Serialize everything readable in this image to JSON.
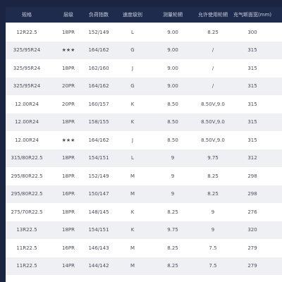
{
  "table": {
    "header": [
      "规格",
      "层级",
      "负荷指数",
      "速度级别",
      "测量轮辋",
      "允许使用轮辋",
      "充气断面宽(mm)"
    ],
    "rows": [
      [
        "12R22.5",
        "18PR",
        "152/149",
        "L",
        "9.00",
        "8.25",
        "300"
      ],
      [
        "325/95R24",
        "★★★",
        "164/162",
        "G",
        "9.00",
        "/",
        "315"
      ],
      [
        "325/95R24",
        "18PR",
        "162/160",
        "J",
        "9.00",
        "/",
        "315"
      ],
      [
        "325/95R24",
        "20PR",
        "164/162",
        "G",
        "9.00",
        "/",
        "315"
      ],
      [
        "12.00R24",
        "20PR",
        "160/157",
        "K",
        "8.50",
        "8.50V,9.0",
        "315"
      ],
      [
        "12.00R24",
        "18PR",
        "158/155",
        "K",
        "8.50",
        "8.50V,9.0",
        "315"
      ],
      [
        "12.00R24",
        "★★★",
        "164/162",
        "J",
        "8.50",
        "8.50V,9.0",
        "315"
      ],
      [
        "315/80R22.5",
        "18PR",
        "154/151",
        "L",
        "9",
        "9.75",
        "312"
      ],
      [
        "295/80R22.5",
        "18PR",
        "152/149",
        "M",
        "9",
        "8.25",
        "298"
      ],
      [
        "295/80R22.5",
        "16PR",
        "150/147",
        "M",
        "9",
        "8.25",
        "298"
      ],
      [
        "275/70R22.5",
        "18PR",
        "148/145",
        "K",
        "8.25",
        "9",
        "276"
      ],
      [
        "13R22.5",
        "18PR",
        "154/151",
        "K",
        "9.75",
        "9",
        "320"
      ],
      [
        "11R22.5",
        "16PR",
        "146/143",
        "M",
        "8.25",
        "7.5",
        "279"
      ],
      [
        "11R22.5",
        "14PR",
        "144/142",
        "M",
        "8.25",
        "7.5",
        "279"
      ]
    ]
  }
}
